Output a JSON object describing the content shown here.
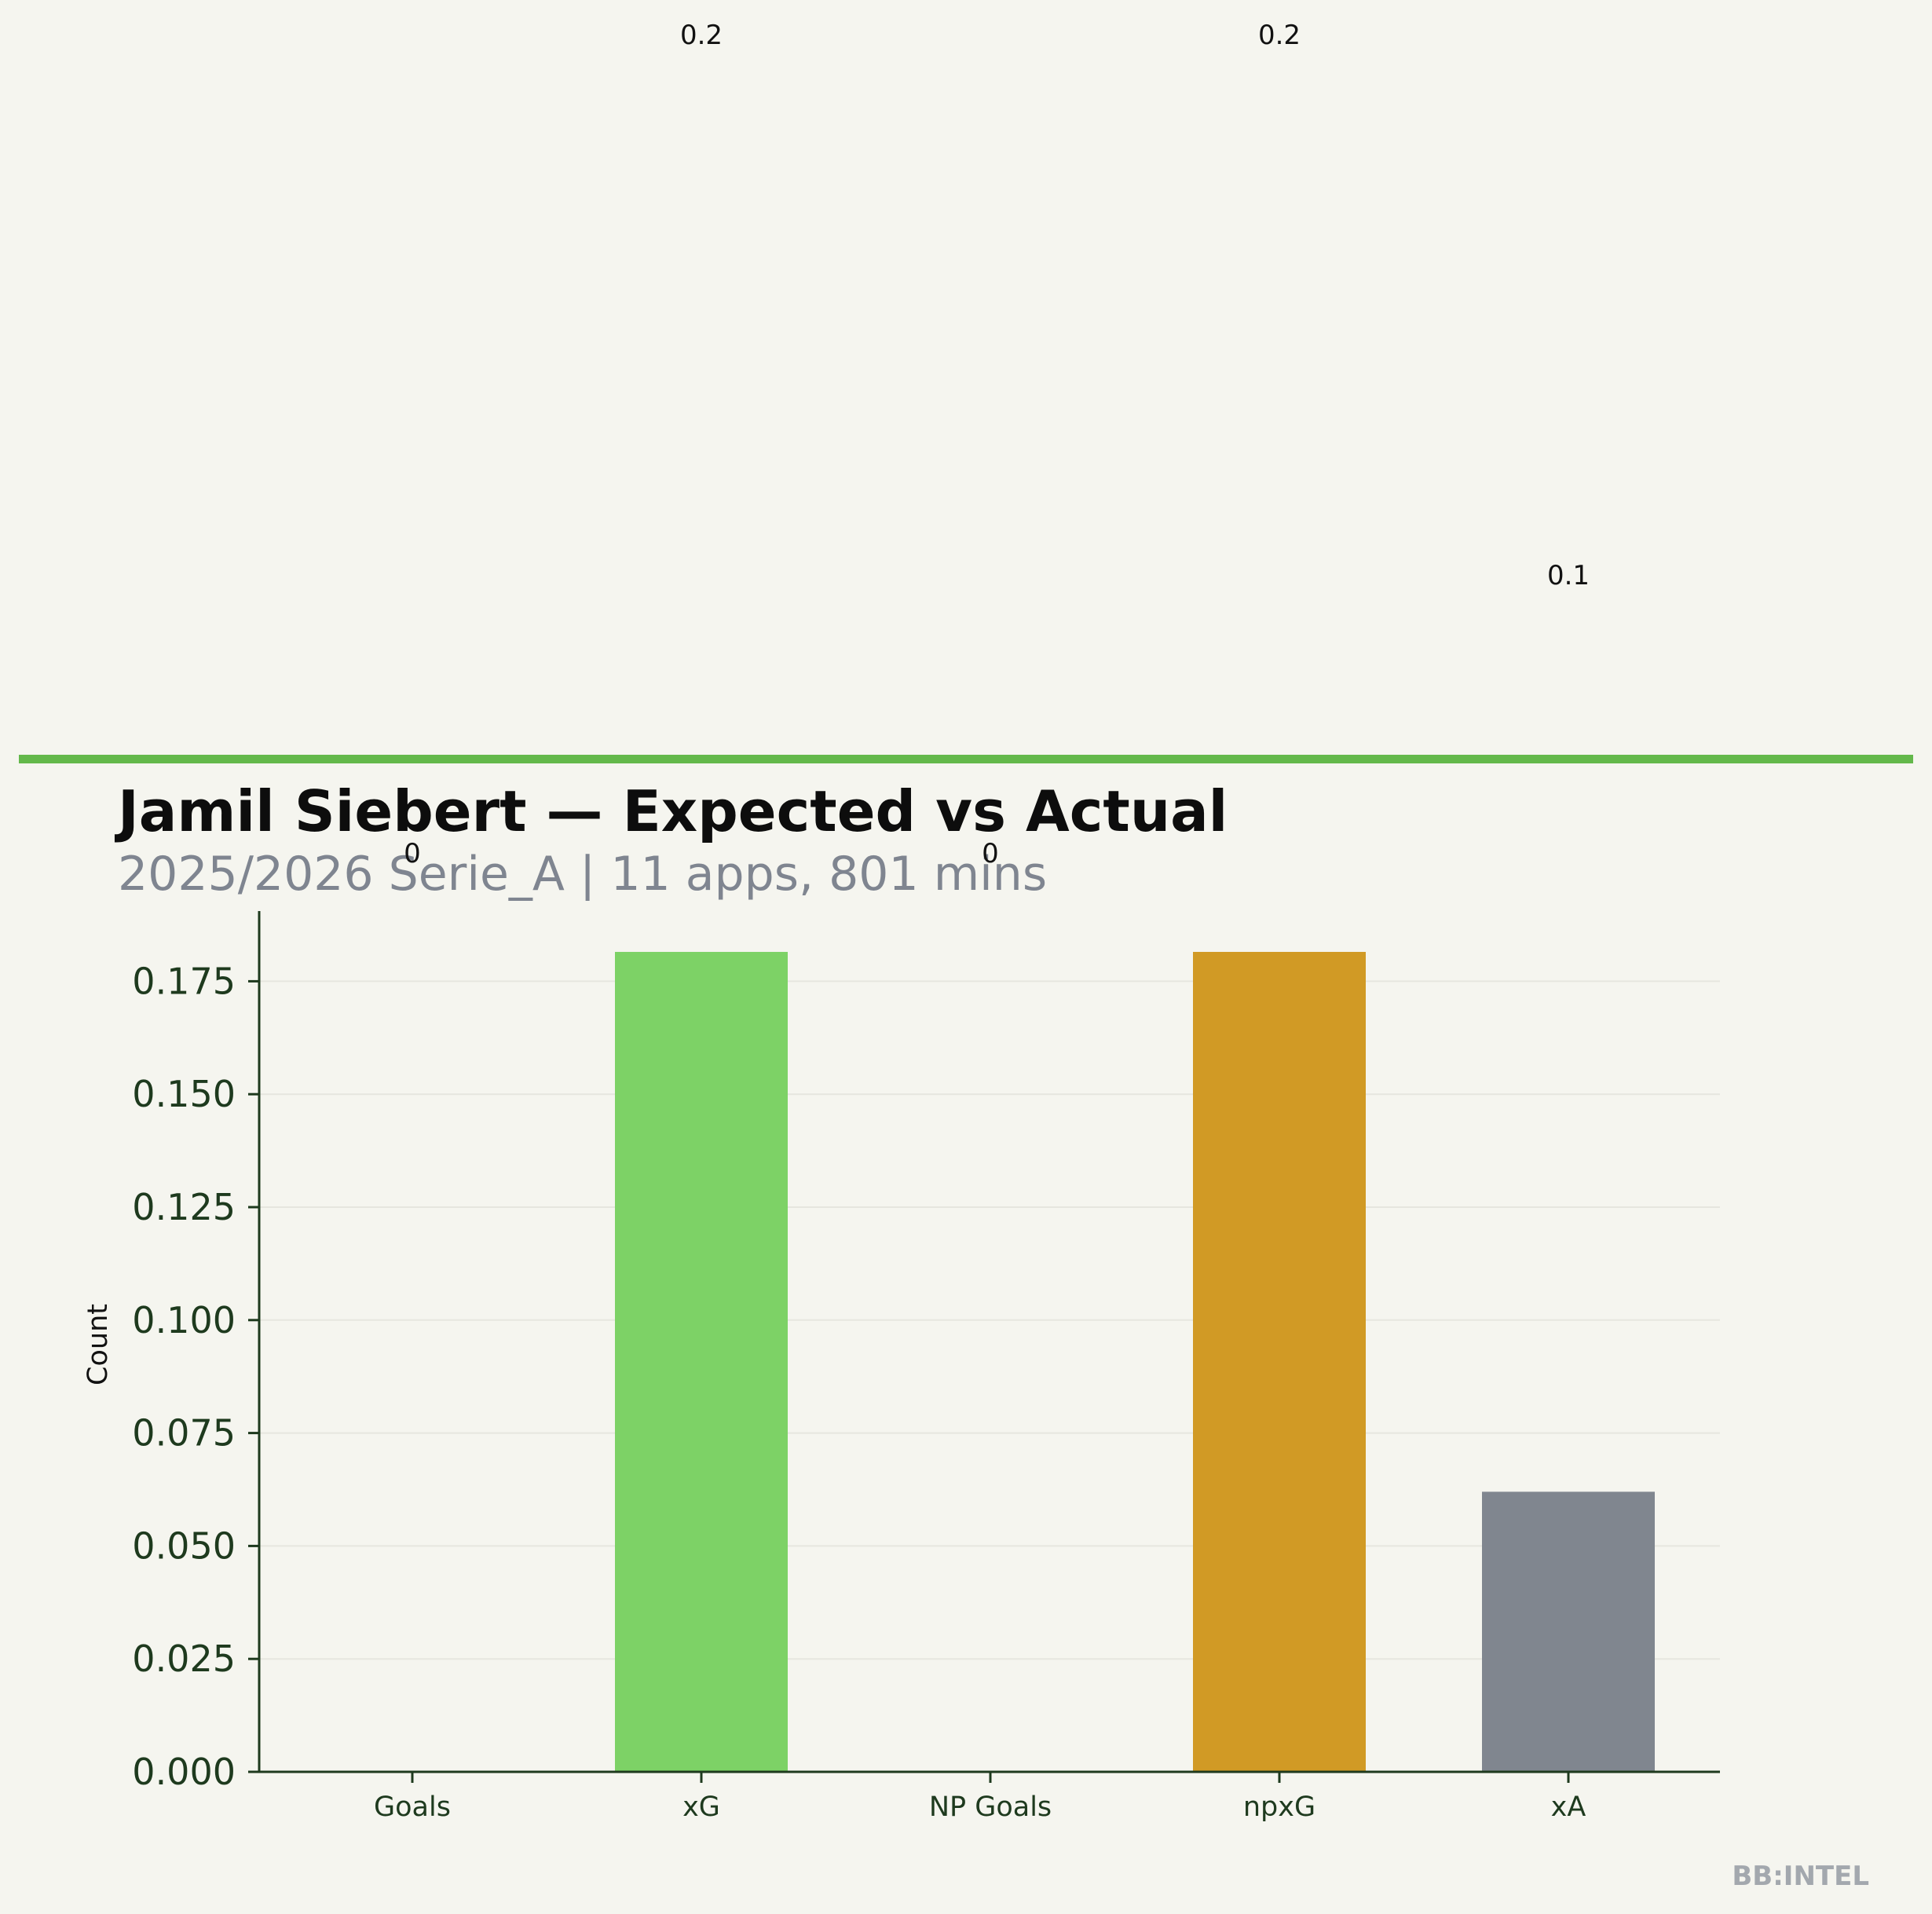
{
  "header": {
    "title": "Jamil Siebert — Expected vs Actual",
    "subtitle": "2025/2026 Serie_A | 11 apps, 801 mins",
    "accent_color": "#63b84a"
  },
  "branding": {
    "text": "BB:INTEL"
  },
  "chart_data": {
    "type": "bar",
    "categories": [
      "Goals",
      "xG",
      "NP Goals",
      "npxG",
      "xA"
    ],
    "values": [
      0,
      0.1815,
      0,
      0.1815,
      0.062
    ],
    "value_labels": [
      "0",
      "0.2",
      "0",
      "0.2",
      "0.1"
    ],
    "colors": [
      "#7dd266",
      "#7dd266",
      "#7dd266",
      "#d19a25",
      "#80868f"
    ],
    "ylabel": "Count",
    "yticks": [
      "0.000",
      "0.025",
      "0.050",
      "0.075",
      "0.100",
      "0.125",
      "0.150",
      "0.175"
    ],
    "ylim": [
      0,
      0.19
    ],
    "grid": true
  }
}
